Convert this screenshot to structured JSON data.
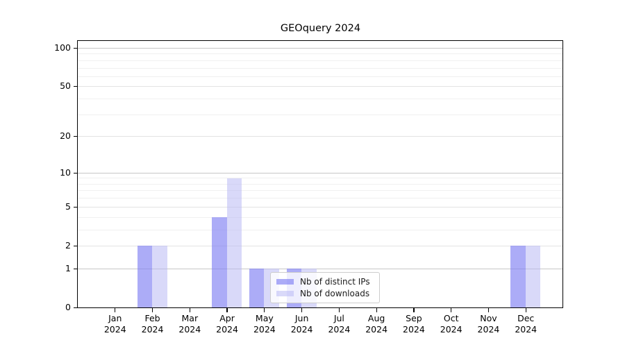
{
  "title": "GEOquery 2024",
  "chart_data": {
    "type": "bar",
    "categories": [
      "Jan 2024",
      "Feb 2024",
      "Mar 2024",
      "Apr 2024",
      "May 2024",
      "Jun 2024",
      "Jul 2024",
      "Aug 2024",
      "Sep 2024",
      "Oct 2024",
      "Nov 2024",
      "Dec 2024"
    ],
    "series": [
      {
        "name": "Nb of distinct IPs",
        "color": "#aaaaf6",
        "color_css": "rgba(128,128,242,0.65)",
        "values": [
          0,
          2,
          0,
          4,
          1,
          1,
          0,
          0,
          0,
          0,
          0,
          2
        ]
      },
      {
        "name": "Nb of downloads",
        "color": "#d9d9f8",
        "color_css": "rgba(183,183,243,0.53)",
        "values": [
          0,
          2,
          0,
          9,
          1,
          1,
          0,
          0,
          0,
          0,
          0,
          2
        ]
      }
    ],
    "yscale": "log1p",
    "ylim": [
      0,
      114
    ],
    "yticks": [
      0,
      1,
      2,
      5,
      10,
      20,
      50,
      100
    ],
    "grid_major": [
      1,
      10,
      100
    ],
    "grid_mid": [
      2,
      5,
      20,
      50
    ],
    "grid_minor": [
      3,
      4,
      6,
      7,
      8,
      9,
      30,
      40,
      60,
      70,
      80,
      90
    ],
    "grid_color_major": "#c6c6c6",
    "grid_color_mid": "#e3e3e3",
    "grid_color_minor": "#f0f0f0",
    "legend_position": "lower center",
    "xlabel": "",
    "ylabel": ""
  }
}
